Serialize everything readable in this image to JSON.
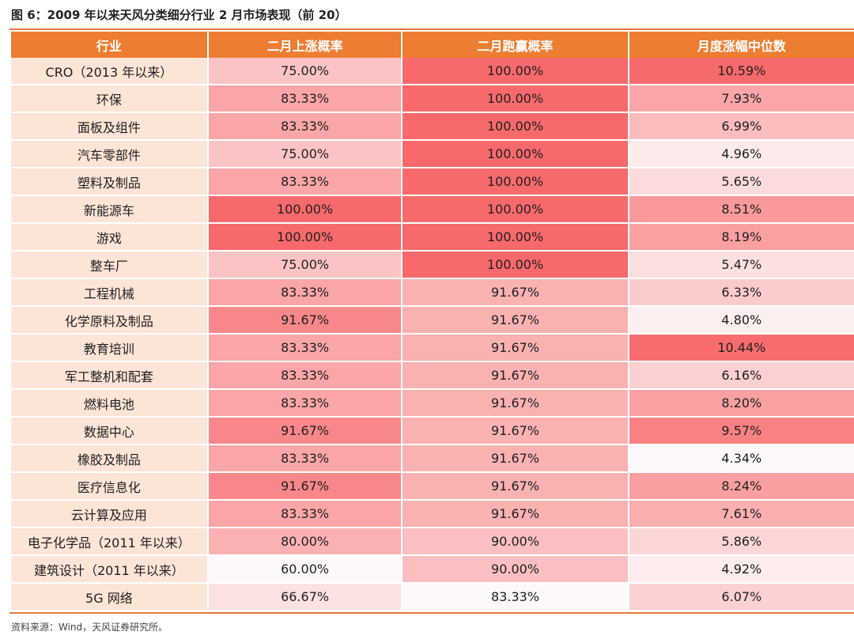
{
  "title": "图 6：2009 年以来天风分类细分行业 2 月市场表现（前 20）",
  "headers": [
    "行业",
    "二月上涨概率",
    "二月跑赢概率",
    "月度涨幅中位数"
  ],
  "colors": {
    "header_bg": "#ed7d31",
    "industry_bg": "#fce4d6",
    "scale_low": "#fdf9fa",
    "scale_high": "#f8696b"
  },
  "rows": [
    {
      "industry": "CRO（2013 年以来）",
      "up_prob": "75.00%",
      "beat_prob": "100.00%",
      "median": "10.59%"
    },
    {
      "industry": "环保",
      "up_prob": "83.33%",
      "beat_prob": "100.00%",
      "median": "7.93%"
    },
    {
      "industry": "面板及组件",
      "up_prob": "83.33%",
      "beat_prob": "100.00%",
      "median": "6.99%"
    },
    {
      "industry": "汽车零部件",
      "up_prob": "75.00%",
      "beat_prob": "100.00%",
      "median": "4.96%"
    },
    {
      "industry": "塑料及制品",
      "up_prob": "83.33%",
      "beat_prob": "100.00%",
      "median": "5.65%"
    },
    {
      "industry": "新能源车",
      "up_prob": "100.00%",
      "beat_prob": "100.00%",
      "median": "8.51%"
    },
    {
      "industry": "游戏",
      "up_prob": "100.00%",
      "beat_prob": "100.00%",
      "median": "8.19%"
    },
    {
      "industry": "整车厂",
      "up_prob": "75.00%",
      "beat_prob": "100.00%",
      "median": "5.47%"
    },
    {
      "industry": "工程机械",
      "up_prob": "83.33%",
      "beat_prob": "91.67%",
      "median": "6.33%"
    },
    {
      "industry": "化学原料及制品",
      "up_prob": "91.67%",
      "beat_prob": "91.67%",
      "median": "4.80%"
    },
    {
      "industry": "教育培训",
      "up_prob": "83.33%",
      "beat_prob": "91.67%",
      "median": "10.44%"
    },
    {
      "industry": "军工整机和配套",
      "up_prob": "83.33%",
      "beat_prob": "91.67%",
      "median": "6.16%"
    },
    {
      "industry": "燃料电池",
      "up_prob": "83.33%",
      "beat_prob": "91.67%",
      "median": "8.20%"
    },
    {
      "industry": "数据中心",
      "up_prob": "91.67%",
      "beat_prob": "91.67%",
      "median": "9.57%"
    },
    {
      "industry": "橡胶及制品",
      "up_prob": "83.33%",
      "beat_prob": "91.67%",
      "median": "4.34%"
    },
    {
      "industry": "医疗信息化",
      "up_prob": "91.67%",
      "beat_prob": "91.67%",
      "median": "8.24%"
    },
    {
      "industry": "云计算及应用",
      "up_prob": "83.33%",
      "beat_prob": "91.67%",
      "median": "7.61%"
    },
    {
      "industry": "电子化学品（2011 年以来）",
      "up_prob": "80.00%",
      "beat_prob": "90.00%",
      "median": "5.86%"
    },
    {
      "industry": "建筑设计（2011 年以来）",
      "up_prob": "60.00%",
      "beat_prob": "90.00%",
      "median": "4.92%"
    },
    {
      "industry": "5G 网络",
      "up_prob": "66.67%",
      "beat_prob": "83.33%",
      "median": "6.07%"
    }
  ],
  "source": "资料来源：Wind，天风证券研究所。"
}
